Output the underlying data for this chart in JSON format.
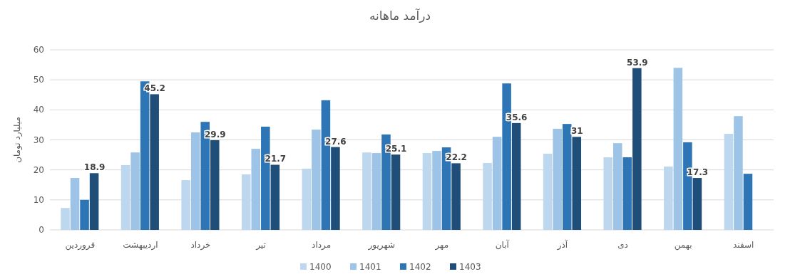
{
  "chart_data": {
    "type": "bar",
    "title": "درآمد ماهانه",
    "ylabel": "میلیارد تومان",
    "categories": [
      "فروردین",
      "اردیبهشت",
      "خرداد",
      "تیر",
      "مرداد",
      "شهریور",
      "مهر",
      "آبان",
      "آذر",
      "دی",
      "بهمن",
      "اسفند"
    ],
    "series": [
      {
        "name": "1400",
        "color": "#bdd7ee",
        "values": [
          7.3,
          21.6,
          16.6,
          18.5,
          20.4,
          25.8,
          25.6,
          22.3,
          25.4,
          24.2,
          21.1,
          32
        ]
      },
      {
        "name": "1401",
        "color": "#9dc3e6",
        "values": [
          17.3,
          25.8,
          32.5,
          27,
          33.4,
          25.6,
          26.3,
          31,
          33.7,
          28.9,
          54,
          37.9
        ]
      },
      {
        "name": "1402",
        "color": "#2e75b6",
        "values": [
          10,
          49.5,
          36,
          34.4,
          43.2,
          31.8,
          27.5,
          48.8,
          35.3,
          24.2,
          29.2,
          18.7
        ]
      },
      {
        "name": "1403",
        "color": "#1f4e79",
        "values": [
          18.9,
          45.2,
          29.9,
          21.7,
          27.6,
          25.1,
          22.2,
          35.6,
          31,
          53.9,
          17.3,
          null
        ],
        "value_labels": [
          "18.9",
          "45.2",
          "29.9",
          "21.7",
          "27.6",
          "25.1",
          "22.2",
          "35.6",
          "31",
          "53.9",
          "17.3",
          null
        ]
      }
    ],
    "ylim": [
      0,
      60
    ],
    "yticks": [
      0,
      10,
      20,
      30,
      40,
      50,
      60
    ],
    "grid": "y",
    "legend": "bottom"
  }
}
